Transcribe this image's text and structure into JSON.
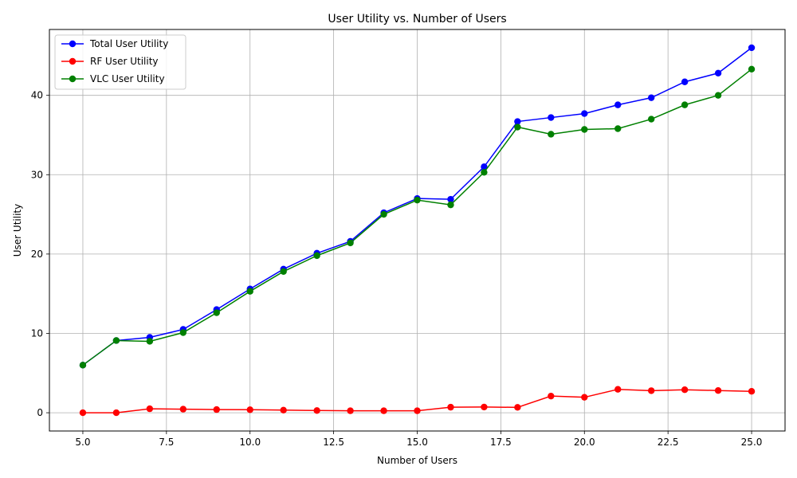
{
  "chart_data": {
    "type": "line",
    "title": "User Utility vs. Number of Users",
    "xlabel": "Number of Users",
    "ylabel": "User Utility",
    "x": [
      5,
      6,
      7,
      8,
      9,
      10,
      11,
      12,
      13,
      14,
      15,
      16,
      17,
      18,
      19,
      20,
      21,
      22,
      23,
      24,
      25
    ],
    "xlim": [
      4.0,
      26.0
    ],
    "ylim": [
      -2.3,
      48.3
    ],
    "xticks": [
      5.0,
      7.5,
      10.0,
      12.5,
      15.0,
      17.5,
      20.0,
      22.5,
      25.0
    ],
    "xtick_labels": [
      "5.0",
      "7.5",
      "10.0",
      "12.5",
      "15.0",
      "17.5",
      "20.0",
      "22.5",
      "25.0"
    ],
    "yticks": [
      0,
      10,
      20,
      30,
      40
    ],
    "ytick_labels": [
      "0",
      "10",
      "20",
      "30",
      "40"
    ],
    "grid": true,
    "legend_position": "top-left",
    "series": [
      {
        "name": "Total User Utility",
        "color": "#0000ff",
        "values": [
          6.0,
          9.1,
          9.5,
          10.5,
          13.0,
          15.6,
          18.1,
          20.1,
          21.6,
          25.2,
          27.0,
          26.9,
          31.0,
          36.7,
          37.2,
          37.7,
          38.8,
          39.7,
          41.7,
          42.8,
          46.0
        ]
      },
      {
        "name": "RF User Utility",
        "color": "#ff0000",
        "values": [
          0.0,
          0.0,
          0.5,
          0.45,
          0.4,
          0.38,
          0.33,
          0.28,
          0.25,
          0.25,
          0.25,
          0.7,
          0.72,
          0.68,
          2.1,
          1.95,
          2.95,
          2.78,
          2.9,
          2.8,
          2.7
        ]
      },
      {
        "name": "VLC User Utility",
        "color": "#008000",
        "values": [
          6.0,
          9.1,
          9.0,
          10.1,
          12.6,
          15.3,
          17.8,
          19.8,
          21.4,
          25.0,
          26.8,
          26.2,
          30.3,
          36.0,
          35.1,
          35.7,
          35.8,
          37.0,
          38.8,
          40.0,
          43.3
        ]
      }
    ]
  }
}
